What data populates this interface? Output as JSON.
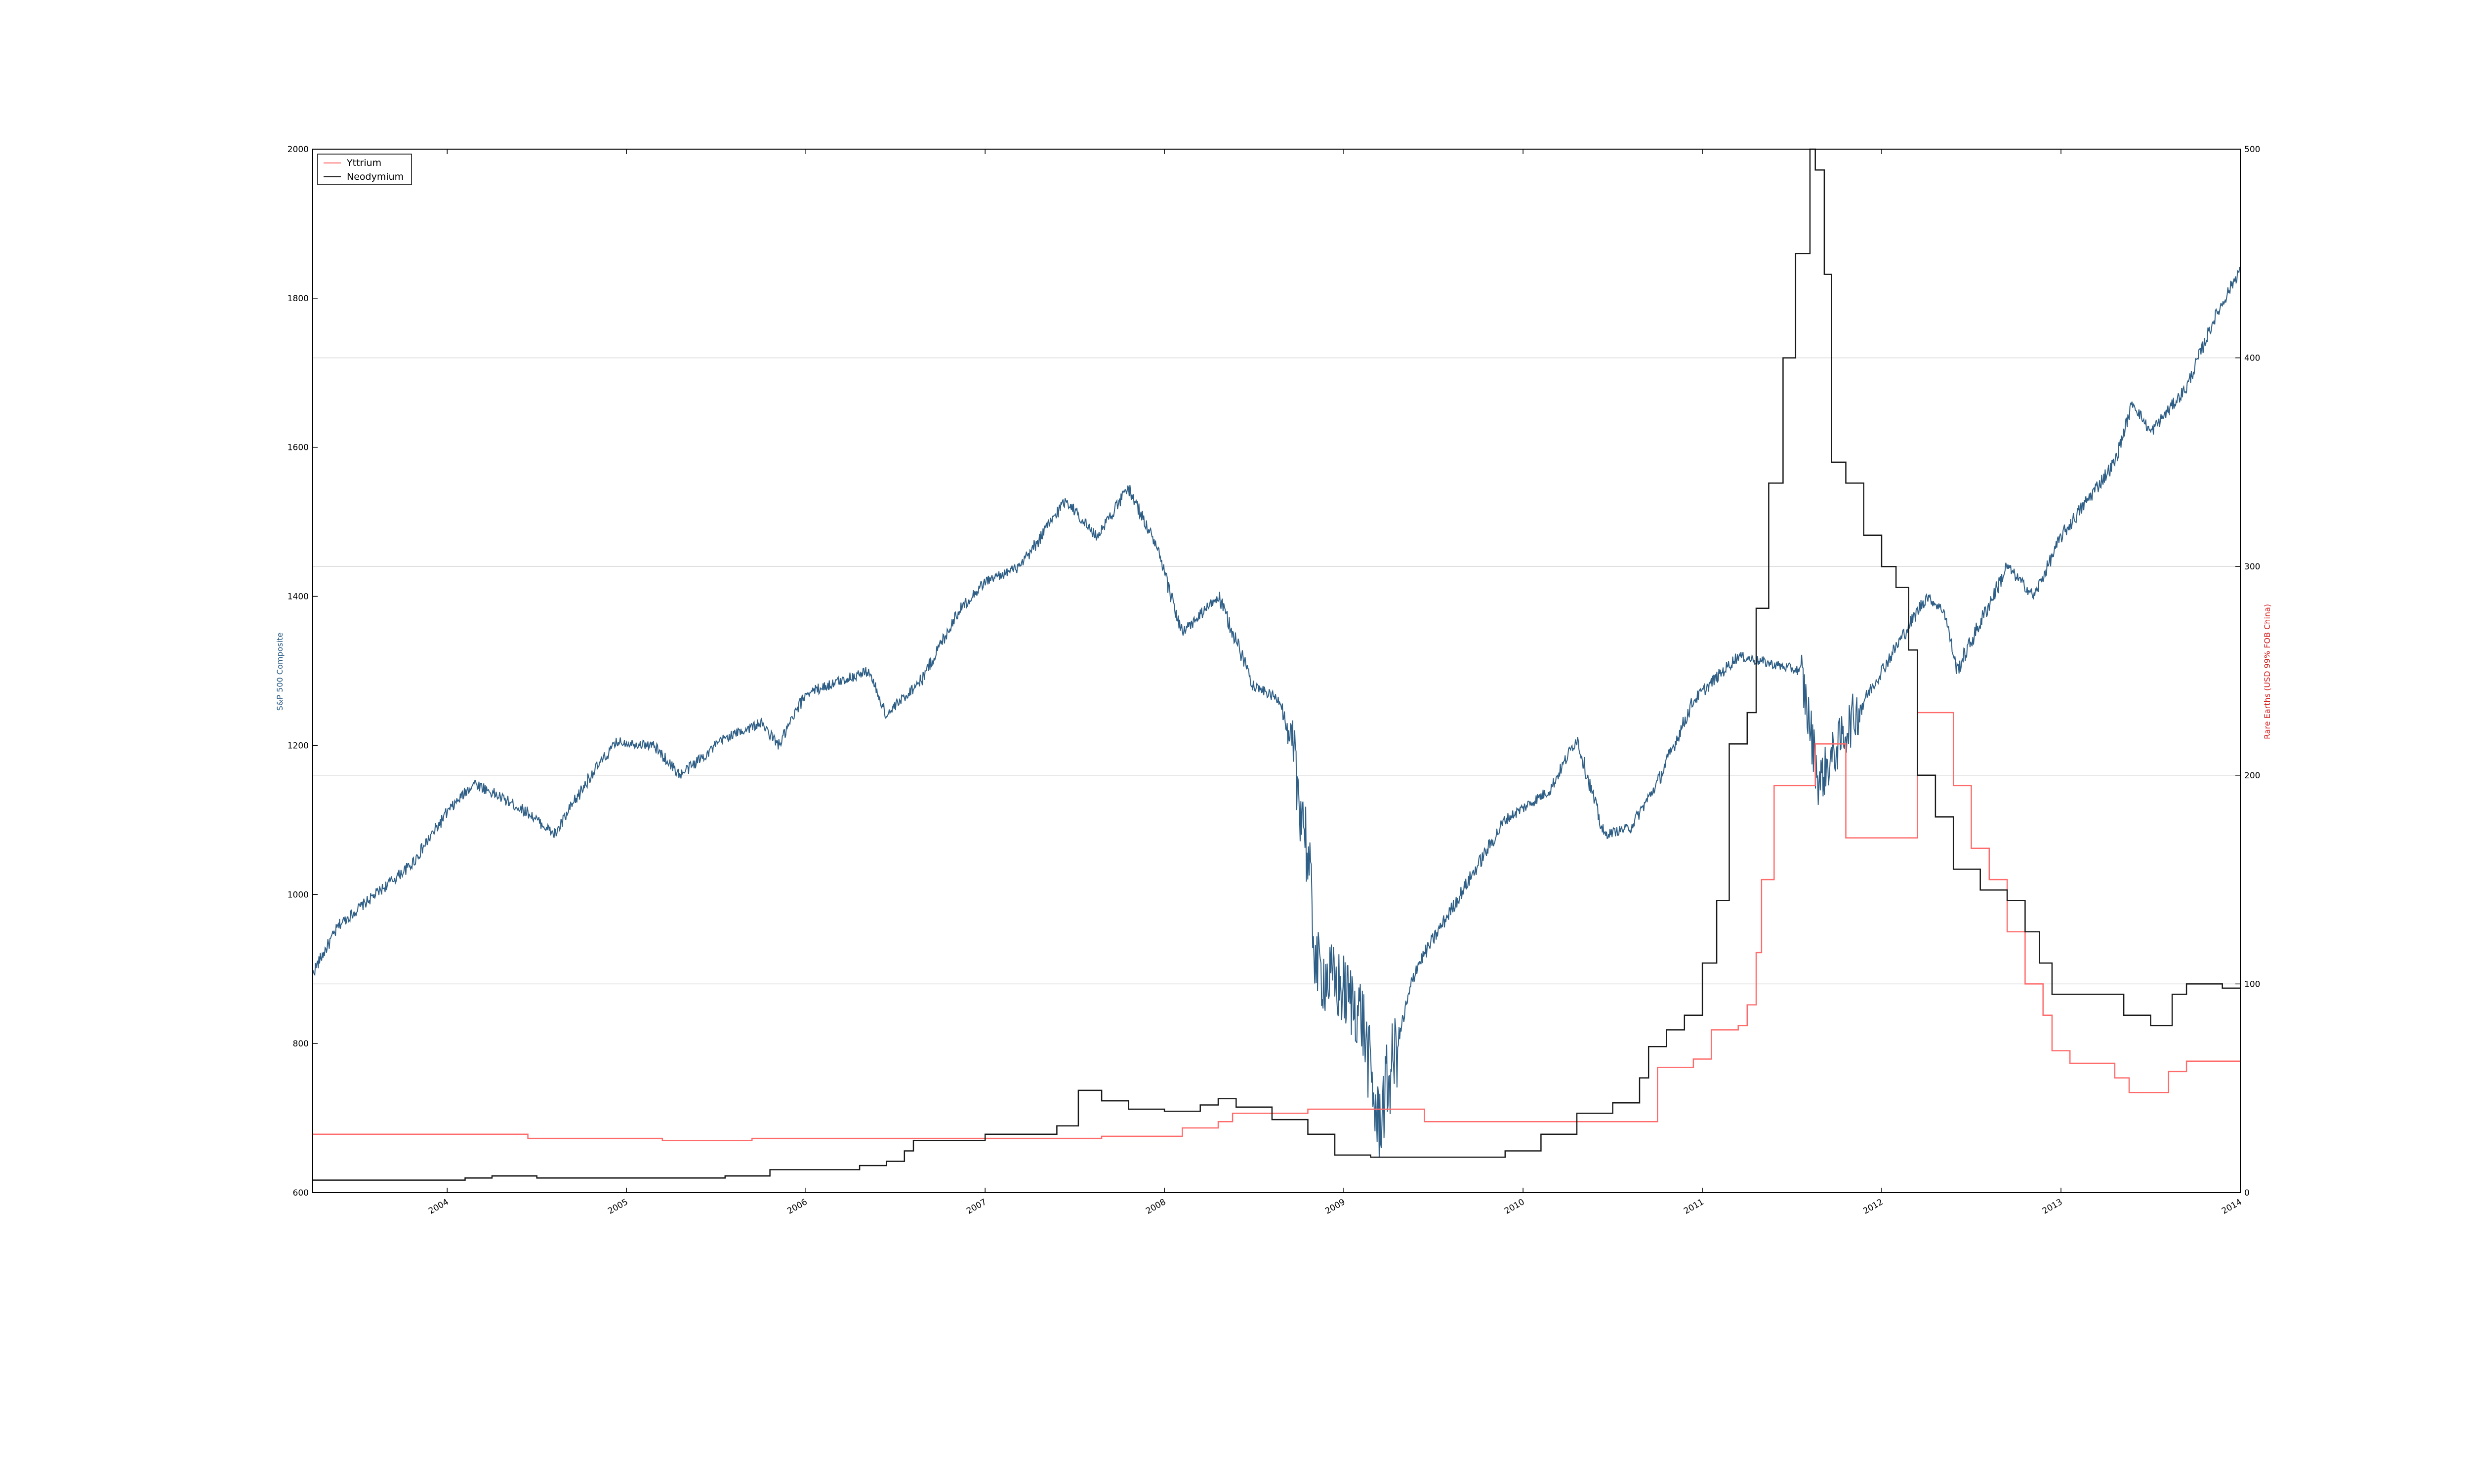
{
  "chart_data": {
    "type": "line",
    "ylabel_left": "S&P 500 Composite",
    "ylabel_right": "Rare Earths (USD 99% FOB China)",
    "x_ticks": [
      "2004",
      "2005",
      "2006",
      "2007",
      "2008",
      "2009",
      "2010",
      "2011",
      "2012",
      "2013",
      "2014"
    ],
    "x_tick_years": [
      2004,
      2005,
      2006,
      2007,
      2008,
      2009,
      2010,
      2011,
      2012,
      2013,
      2014
    ],
    "xlim_years": [
      2003.25,
      2014.0
    ],
    "left_ticks": [
      "600",
      "800",
      "1000",
      "1200",
      "1400",
      "1600",
      "1800",
      "2000"
    ],
    "ylim_left": [
      600,
      2000
    ],
    "right_ticks": [
      "0",
      "100",
      "200",
      "300",
      "400",
      "500"
    ],
    "ylim_right": [
      0,
      500
    ],
    "right_gridlines": [
      100,
      200,
      300,
      400
    ],
    "legend": {
      "position": "upper-left",
      "entries": [
        "Yttrium",
        "Neodymium"
      ]
    },
    "colors": {
      "sp500": "#2f5f86",
      "yttrium": "#ff6b6b",
      "neodymium": "#1a1a1a",
      "grid": "#d8d8d8",
      "axes": "#000000"
    },
    "series": [
      {
        "name": "S&P 500 Composite",
        "axis": "left",
        "style": "noisy",
        "points": [
          [
            "2003.25",
            895
          ],
          [
            "2003.40",
            960
          ],
          [
            "2003.60",
            1000
          ],
          [
            "2003.80",
            1040
          ],
          [
            "2004.00",
            1110
          ],
          [
            "2004.15",
            1150
          ],
          [
            "2004.45",
            1110
          ],
          [
            "2004.60",
            1080
          ],
          [
            "2004.80",
            1160
          ],
          [
            "2004.95",
            1205
          ],
          [
            "2005.15",
            1200
          ],
          [
            "2005.30",
            1160
          ],
          [
            "2005.55",
            1210
          ],
          [
            "2005.75",
            1230
          ],
          [
            "2005.85",
            1200
          ],
          [
            "2006.00",
            1270
          ],
          [
            "2006.35",
            1300
          ],
          [
            "2006.45",
            1240
          ],
          [
            "2006.65",
            1290
          ],
          [
            "2006.85",
            1380
          ],
          [
            "2007.00",
            1420
          ],
          [
            "2007.20",
            1440
          ],
          [
            "2007.45",
            1530
          ],
          [
            "2007.62",
            1480
          ],
          [
            "2007.80",
            1545
          ],
          [
            "2007.95",
            1470
          ],
          [
            "2008.10",
            1350
          ],
          [
            "2008.30",
            1400
          ],
          [
            "2008.50",
            1280
          ],
          [
            "2008.65",
            1260
          ],
          [
            "2008.78",
            1100
          ],
          [
            "2008.85",
            900
          ],
          [
            "2009.00",
            870
          ],
          [
            "2009.10",
            840
          ],
          [
            "2009.19",
            690
          ],
          [
            "2009.40",
            900
          ],
          [
            "2009.65",
            1000
          ],
          [
            "2009.90",
            1100
          ],
          [
            "2010.15",
            1140
          ],
          [
            "2010.30",
            1210
          ],
          [
            "2010.45",
            1080
          ],
          [
            "2010.60",
            1090
          ],
          [
            "2010.75",
            1150
          ],
          [
            "2010.95",
            1260
          ],
          [
            "2011.20",
            1320
          ],
          [
            "2011.55",
            1300
          ],
          [
            "2011.65",
            1150
          ],
          [
            "2011.80",
            1220
          ],
          [
            "2012.00",
            1300
          ],
          [
            "2012.25",
            1400
          ],
          [
            "2012.35",
            1380
          ],
          [
            "2012.42",
            1300
          ],
          [
            "2012.70",
            1440
          ],
          [
            "2012.85",
            1400
          ],
          [
            "2013.00",
            1480
          ],
          [
            "2013.30",
            1580
          ],
          [
            "2013.40",
            1660
          ],
          [
            "2013.50",
            1620
          ],
          [
            "2013.70",
            1680
          ],
          [
            "2013.85",
            1770
          ],
          [
            "2014.00",
            1840
          ]
        ]
      },
      {
        "name": "Yttrium",
        "axis": "right",
        "style": "step",
        "points": [
          [
            "2003.25",
            28
          ],
          [
            "2004.40",
            28
          ],
          [
            "2004.45",
            26
          ],
          [
            "2005.15",
            26
          ],
          [
            "2005.20",
            25
          ],
          [
            "2005.65",
            25
          ],
          [
            "2005.70",
            26
          ],
          [
            "2006.00",
            26
          ],
          [
            "2007.60",
            26
          ],
          [
            "2007.65",
            27
          ],
          [
            "2008.05",
            27
          ],
          [
            "2008.10",
            31
          ],
          [
            "2008.30",
            34
          ],
          [
            "2008.38",
            38
          ],
          [
            "2008.75",
            38
          ],
          [
            "2008.80",
            40
          ],
          [
            "2009.40",
            40
          ],
          [
            "2009.45",
            34
          ],
          [
            "2010.70",
            34
          ],
          [
            "2010.75",
            60
          ],
          [
            "2010.95",
            64
          ],
          [
            "2011.00",
            64
          ],
          [
            "2011.05",
            78
          ],
          [
            "2011.20",
            80
          ],
          [
            "2011.25",
            90
          ],
          [
            "2011.30",
            115
          ],
          [
            "2011.33",
            150
          ],
          [
            "2011.40",
            195
          ],
          [
            "2011.60",
            195
          ],
          [
            "2011.63",
            215
          ],
          [
            "2011.80",
            170
          ],
          [
            "2012.20",
            230
          ],
          [
            "2012.30",
            230
          ],
          [
            "2012.40",
            195
          ],
          [
            "2012.50",
            165
          ],
          [
            "2012.60",
            150
          ],
          [
            "2012.70",
            125
          ],
          [
            "2012.80",
            100
          ],
          [
            "2012.90",
            85
          ],
          [
            "2012.95",
            68
          ],
          [
            "2013.05",
            62
          ],
          [
            "2013.25",
            62
          ],
          [
            "2013.30",
            55
          ],
          [
            "2013.38",
            48
          ],
          [
            "2013.55",
            48
          ],
          [
            "2013.60",
            58
          ],
          [
            "2013.70",
            63
          ],
          [
            "2014.00",
            63
          ]
        ]
      },
      {
        "name": "Neodymium",
        "axis": "right",
        "style": "step",
        "points": [
          [
            "2003.25",
            6
          ],
          [
            "2003.90",
            6
          ],
          [
            "2004.10",
            7
          ],
          [
            "2004.25",
            8
          ],
          [
            "2004.50",
            7
          ],
          [
            "2005.00",
            7
          ],
          [
            "2005.30",
            7
          ],
          [
            "2005.55",
            8
          ],
          [
            "2005.80",
            11
          ],
          [
            "2006.10",
            11
          ],
          [
            "2006.30",
            13
          ],
          [
            "2006.45",
            15
          ],
          [
            "2006.55",
            20
          ],
          [
            "2006.60",
            25
          ],
          [
            "2006.80",
            25
          ],
          [
            "2007.00",
            28
          ],
          [
            "2007.25",
            28
          ],
          [
            "2007.40",
            32
          ],
          [
            "2007.52",
            49
          ],
          [
            "2007.65",
            44
          ],
          [
            "2007.80",
            40
          ],
          [
            "2008.00",
            39
          ],
          [
            "2008.20",
            42
          ],
          [
            "2008.30",
            45
          ],
          [
            "2008.40",
            41
          ],
          [
            "2008.60",
            35
          ],
          [
            "2008.80",
            28
          ],
          [
            "2008.95",
            18
          ],
          [
            "2009.15",
            17
          ],
          [
            "2009.55",
            17
          ],
          [
            "2009.90",
            20
          ],
          [
            "2010.10",
            28
          ],
          [
            "2010.30",
            38
          ],
          [
            "2010.50",
            43
          ],
          [
            "2010.65",
            55
          ],
          [
            "2010.70",
            70
          ],
          [
            "2010.80",
            78
          ],
          [
            "2010.90",
            85
          ],
          [
            "2011.00",
            110
          ],
          [
            "2011.08",
            140
          ],
          [
            "2011.15",
            215
          ],
          [
            "2011.25",
            230
          ],
          [
            "2011.30",
            280
          ],
          [
            "2011.37",
            340
          ],
          [
            "2011.45",
            400
          ],
          [
            "2011.52",
            450
          ],
          [
            "2011.60",
            500
          ],
          [
            "2011.63",
            490
          ],
          [
            "2011.68",
            440
          ],
          [
            "2011.72",
            350
          ],
          [
            "2011.80",
            340
          ],
          [
            "2011.90",
            315
          ],
          [
            "2012.00",
            300
          ],
          [
            "2012.08",
            290
          ],
          [
            "2012.15",
            260
          ],
          [
            "2012.20",
            200
          ],
          [
            "2012.30",
            180
          ],
          [
            "2012.40",
            155
          ],
          [
            "2012.55",
            145
          ],
          [
            "2012.70",
            140
          ],
          [
            "2012.80",
            125
          ],
          [
            "2012.88",
            110
          ],
          [
            "2012.95",
            95
          ],
          [
            "2013.20",
            95
          ],
          [
            "2013.35",
            85
          ],
          [
            "2013.50",
            80
          ],
          [
            "2013.62",
            95
          ],
          [
            "2013.70",
            100
          ],
          [
            "2013.90",
            98
          ],
          [
            "2014.00",
            98
          ]
        ]
      }
    ]
  }
}
